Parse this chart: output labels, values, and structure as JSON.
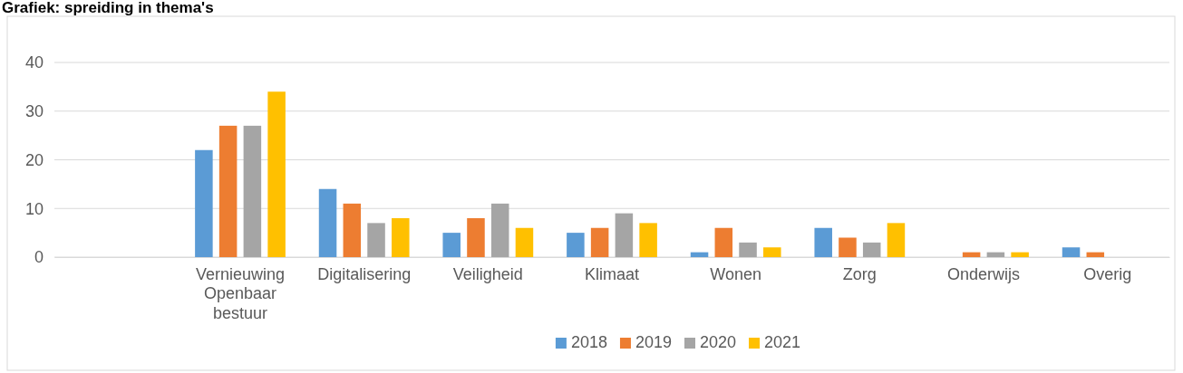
{
  "chart_data": {
    "type": "bar",
    "title": "Grafiek: spreiding in thema's",
    "categories": [
      null,
      "Vernieuwing Openbaar bestuur",
      "Digitalisering",
      "Veiligheid",
      "Klimaat",
      "Wonen",
      "Zorg",
      "Onderwijs",
      "Overig"
    ],
    "series": [
      {
        "name": "2018",
        "color": "#5b9bd5",
        "values": [
          null,
          22,
          14,
          5,
          5,
          1,
          6,
          null,
          2
        ]
      },
      {
        "name": "2019",
        "color": "#ed7d31",
        "values": [
          null,
          27,
          11,
          8,
          6,
          6,
          4,
          1,
          1
        ]
      },
      {
        "name": "2020",
        "color": "#a5a5a5",
        "values": [
          null,
          27,
          7,
          11,
          9,
          3,
          3,
          1,
          null
        ]
      },
      {
        "name": "2021",
        "color": "#ffc000",
        "values": [
          null,
          34,
          8,
          6,
          7,
          2,
          7,
          1,
          null
        ]
      }
    ],
    "ylim": [
      0,
      40
    ],
    "yticks": [
      0,
      10,
      20,
      30,
      40
    ],
    "grid": "y",
    "legend": "bottom"
  }
}
